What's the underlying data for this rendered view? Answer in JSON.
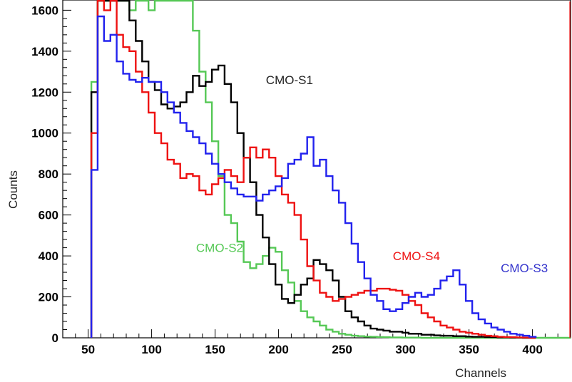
{
  "chart_data": {
    "type": "line",
    "title": "",
    "xlabel": "Channels",
    "ylabel": "Counts",
    "xlim": [
      30,
      430
    ],
    "ylim": [
      0,
      1650
    ],
    "x_ticks": [
      50,
      100,
      150,
      200,
      250,
      300,
      350,
      400
    ],
    "y_ticks": [
      0,
      200,
      400,
      600,
      800,
      1000,
      1200,
      1400,
      1600
    ],
    "grid": false,
    "legend": "none (labels placed next to curves)",
    "step": 5,
    "series": [
      {
        "name": "CMO-S1",
        "color": "#000000",
        "x": [
          55,
          60,
          65,
          70,
          75,
          80,
          85,
          90,
          95,
          100,
          105,
          110,
          115,
          120,
          125,
          130,
          135,
          140,
          145,
          150,
          155,
          160,
          165,
          170,
          175,
          180,
          185,
          190,
          195,
          200,
          205,
          210,
          215,
          220,
          225,
          230,
          235,
          240,
          245,
          250,
          255,
          260,
          265,
          270,
          275,
          280,
          285,
          290,
          295,
          300,
          305,
          310,
          315,
          320,
          325,
          330,
          335,
          340,
          345,
          350,
          355,
          360,
          365,
          370,
          375,
          380,
          385,
          390,
          395,
          400
        ],
        "y": [
          1200,
          1650,
          1650,
          1650,
          1650,
          1650,
          1550,
          1450,
          1350,
          1250,
          1210,
          1140,
          1120,
          1130,
          1150,
          1200,
          1280,
          1230,
          1250,
          1310,
          1330,
          1240,
          1150,
          1000,
          880,
          760,
          600,
          490,
          360,
          260,
          190,
          170,
          210,
          260,
          290,
          380,
          360,
          330,
          280,
          200,
          130,
          100,
          80,
          60,
          45,
          40,
          35,
          30,
          30,
          25,
          20,
          20,
          15,
          15,
          12,
          10,
          10,
          8,
          8,
          6,
          5,
          5,
          4,
          3,
          2,
          2,
          1,
          1,
          0,
          0
        ]
      },
      {
        "name": "CMO-S2",
        "color": "#55c855",
        "x": [
          55,
          60,
          65,
          70,
          75,
          80,
          85,
          90,
          95,
          100,
          105,
          110,
          115,
          120,
          125,
          130,
          135,
          140,
          145,
          150,
          155,
          160,
          165,
          170,
          175,
          180,
          185,
          190,
          195,
          200,
          205,
          210,
          215,
          220,
          225,
          230,
          235,
          240,
          245,
          250,
          255,
          260,
          265,
          270,
          275,
          280,
          285,
          290,
          295,
          300,
          305,
          310,
          315,
          320,
          325,
          330,
          335,
          340,
          345,
          350,
          355,
          360,
          365,
          370,
          375,
          380,
          385,
          390,
          395,
          400
        ],
        "y": [
          1250,
          1650,
          1650,
          1650,
          1650,
          1650,
          1600,
          1650,
          1650,
          1600,
          1650,
          1650,
          1650,
          1650,
          1650,
          1650,
          1500,
          1300,
          1150,
          960,
          790,
          600,
          560,
          470,
          370,
          340,
          360,
          400,
          440,
          420,
          330,
          270,
          180,
          130,
          100,
          80,
          60,
          40,
          30,
          20,
          15,
          10,
          8,
          6,
          5,
          4,
          3,
          2,
          2,
          1,
          1,
          1,
          0,
          0,
          0,
          0,
          0,
          0,
          0,
          0,
          0,
          0,
          0,
          0,
          0,
          0,
          0,
          0,
          0,
          0
        ]
      },
      {
        "name": "CMO-S3",
        "color": "#2222ee",
        "x": [
          55,
          60,
          65,
          70,
          75,
          80,
          85,
          90,
          95,
          100,
          105,
          110,
          115,
          120,
          125,
          130,
          135,
          140,
          145,
          150,
          155,
          160,
          165,
          170,
          175,
          180,
          185,
          190,
          195,
          200,
          205,
          210,
          215,
          220,
          225,
          230,
          235,
          240,
          245,
          250,
          255,
          260,
          265,
          270,
          275,
          280,
          285,
          290,
          295,
          300,
          305,
          310,
          315,
          320,
          325,
          330,
          335,
          340,
          345,
          350,
          355,
          360,
          365,
          370,
          375,
          380,
          385,
          390,
          395,
          400
        ],
        "y": [
          820,
          1570,
          1450,
          1480,
          1350,
          1290,
          1260,
          1250,
          1270,
          1250,
          1250,
          1200,
          1150,
          1100,
          1050,
          1010,
          980,
          950,
          900,
          850,
          800,
          760,
          730,
          700,
          690,
          690,
          670,
          700,
          720,
          740,
          780,
          850,
          870,
          900,
          980,
          840,
          870,
          790,
          720,
          660,
          560,
          460,
          370,
          290,
          210,
          180,
          140,
          130,
          140,
          170,
          200,
          220,
          200,
          210,
          240,
          280,
          300,
          330,
          260,
          180,
          120,
          90,
          70,
          50,
          40,
          30,
          20,
          15,
          10,
          5
        ]
      },
      {
        "name": "CMO-S4",
        "color": "#ee1111",
        "x": [
          55,
          60,
          65,
          70,
          75,
          80,
          85,
          90,
          95,
          100,
          105,
          110,
          115,
          120,
          125,
          130,
          135,
          140,
          145,
          150,
          155,
          160,
          165,
          170,
          175,
          180,
          185,
          190,
          195,
          200,
          205,
          210,
          215,
          220,
          225,
          230,
          235,
          240,
          245,
          250,
          255,
          260,
          265,
          270,
          275,
          280,
          285,
          290,
          295,
          300,
          305,
          310,
          315,
          320,
          325,
          330,
          335,
          340,
          345,
          350,
          355,
          360,
          365,
          370,
          375,
          380,
          385,
          390,
          395,
          400
        ],
        "y": [
          1000,
          1650,
          1600,
          1650,
          1480,
          1420,
          1400,
          1300,
          1200,
          1100,
          1000,
          950,
          870,
          850,
          780,
          800,
          790,
          720,
          700,
          750,
          780,
          820,
          790,
          760,
          880,
          930,
          880,
          920,
          880,
          790,
          700,
          660,
          600,
          480,
          350,
          280,
          220,
          200,
          180,
          190,
          200,
          210,
          220,
          230,
          230,
          240,
          240,
          235,
          230,
          210,
          180,
          160,
          120,
          100,
          80,
          60,
          50,
          40,
          30,
          25,
          20,
          15,
          10,
          8,
          5,
          4,
          3,
          2,
          1,
          0
        ]
      }
    ],
    "annotations": [
      {
        "text": "CMO-S1",
        "color": "#222222",
        "x": 190,
        "y": 1240
      },
      {
        "text": "CMO-S2",
        "color": "#55c855",
        "x": 135,
        "y": 420
      },
      {
        "text": "CMO-S4",
        "color": "#ee1111",
        "x": 290,
        "y": 380
      },
      {
        "text": "CMO-S3",
        "color": "#3333cc",
        "x": 375,
        "y": 320
      }
    ]
  }
}
